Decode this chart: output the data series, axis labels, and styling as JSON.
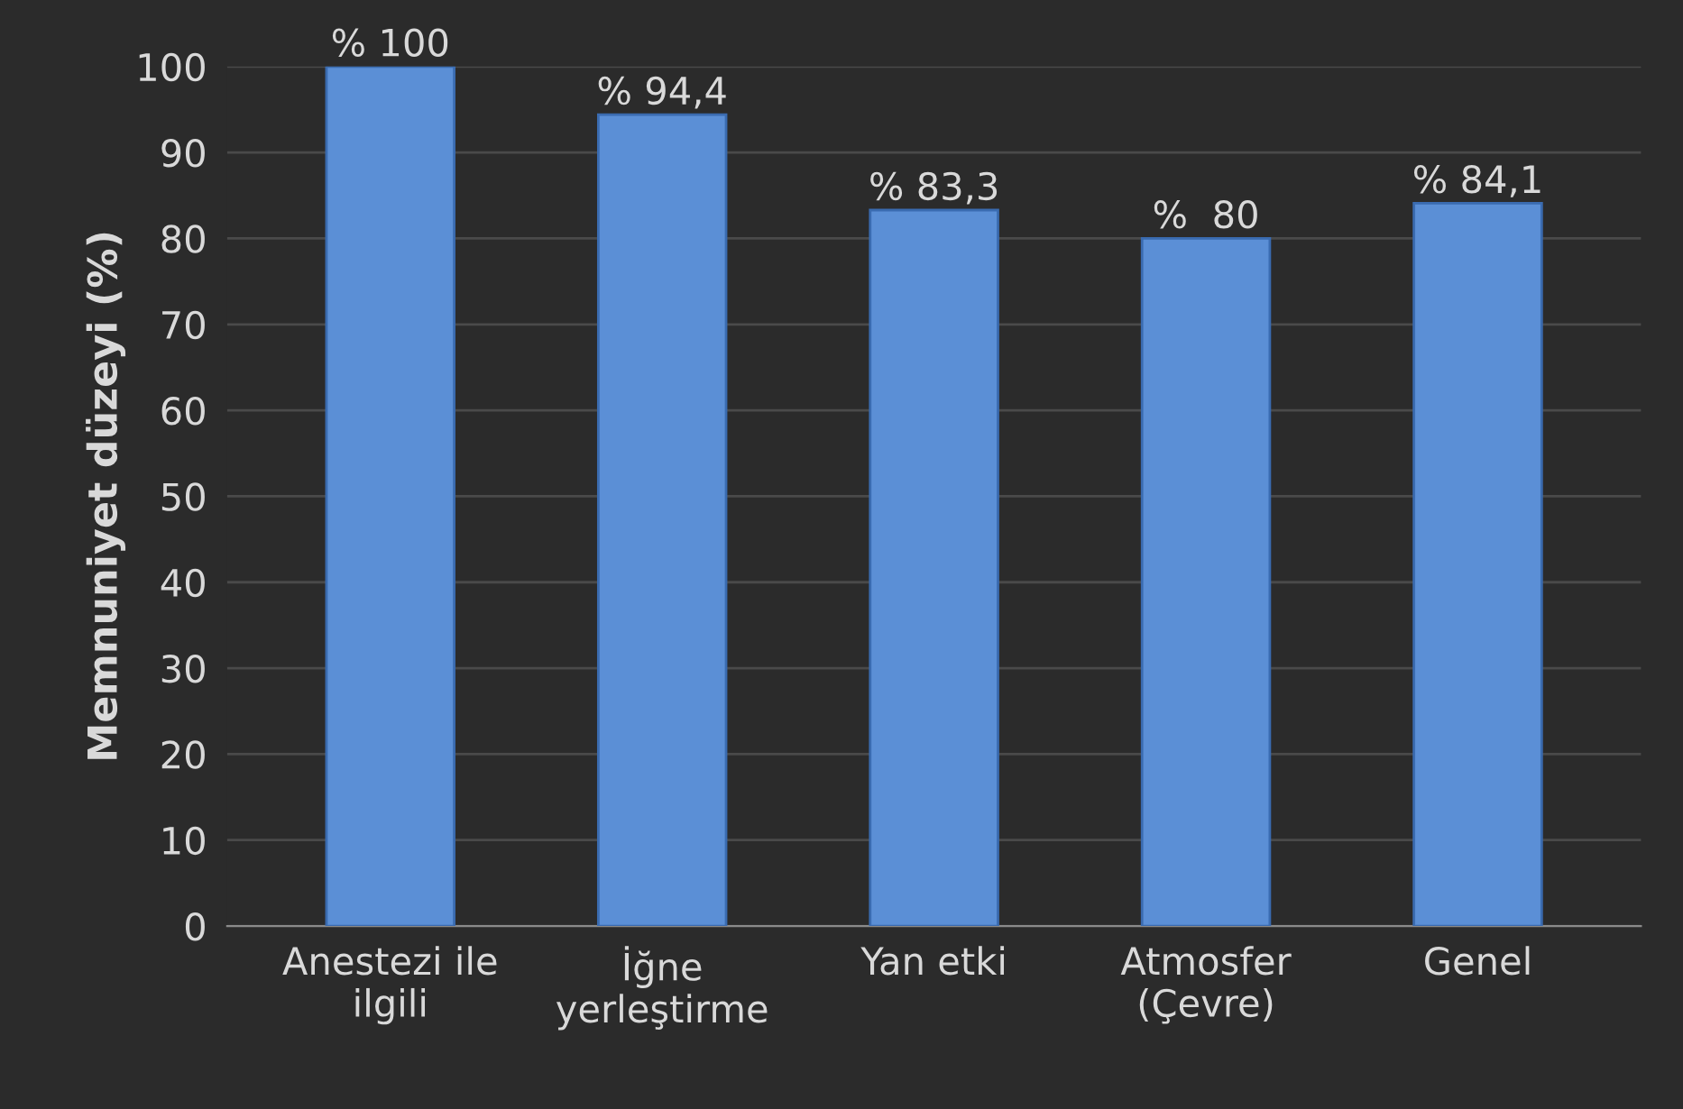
{
  "chart_data": {
    "type": "bar",
    "ylabel": "Memnuniyet düzeyi (%)",
    "categories": [
      "Anestezi ile\nilgili",
      "İğne\nyerleştirme",
      "Yan etki",
      "Atmosfer\n(Çevre)",
      "Genel"
    ],
    "values": [
      100,
      94.4,
      83.3,
      80,
      84.1
    ],
    "value_labels": [
      "% 100",
      "% 94,4",
      "% 83,3",
      "%  80",
      "% 84,1"
    ],
    "color": "#5b8fd6",
    "ylim": [
      0,
      100
    ],
    "yticks": [
      0,
      10,
      20,
      30,
      40,
      50,
      60,
      70,
      80,
      90,
      100
    ],
    "grid": "y",
    "legend": false
  }
}
